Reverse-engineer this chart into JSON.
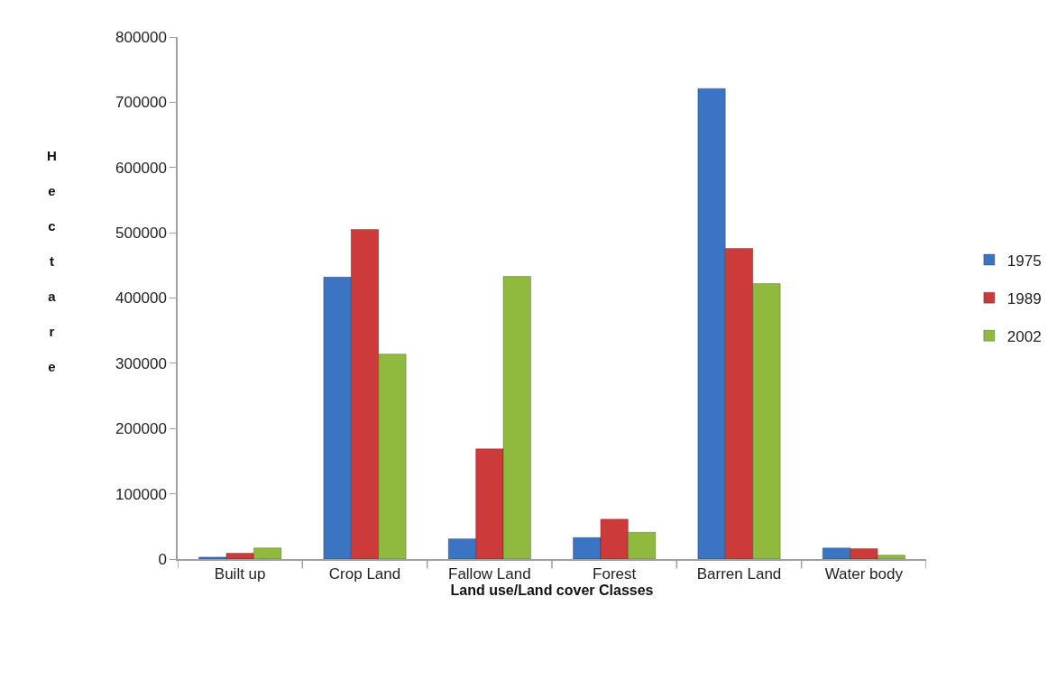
{
  "chart_data": {
    "type": "bar",
    "xlabel": "Land use/Land cover Classes",
    "ylabel": "Hectare",
    "categories": [
      "Built up",
      "Crop Land",
      "Fallow Land",
      "Forest",
      "Barren Land",
      "Water body"
    ],
    "series": [
      {
        "name": "1975",
        "color": "#3a74c2",
        "values": [
          3000,
          432000,
          31000,
          33000,
          721000,
          17000
        ]
      },
      {
        "name": "1989",
        "color": "#cc3a3a",
        "values": [
          9000,
          505000,
          169000,
          61000,
          476000,
          16000
        ]
      },
      {
        "name": "2002",
        "color": "#8fba3e",
        "values": [
          17000,
          314000,
          433000,
          41000,
          422000,
          6000
        ]
      }
    ],
    "ylim": [
      0,
      800000
    ],
    "yticks": [
      0,
      100000,
      200000,
      300000,
      400000,
      500000,
      600000,
      700000,
      800000
    ],
    "legend": "right"
  }
}
